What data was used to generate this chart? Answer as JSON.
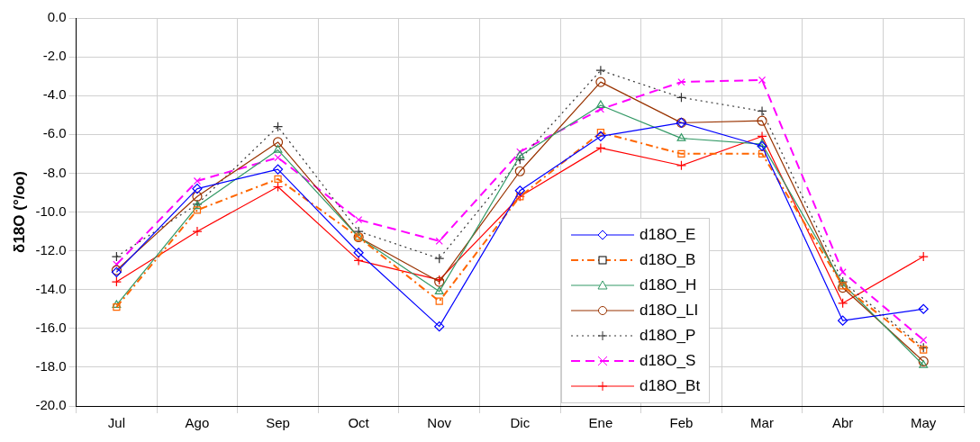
{
  "chart_data": {
    "type": "line",
    "ylabel": "δ18O (°/oo)",
    "categories": [
      "Jul",
      "Ago",
      "Sep",
      "Oct",
      "Nov",
      "Dic",
      "Ene",
      "Feb",
      "Mar",
      "Abr",
      "May"
    ],
    "ylim": [
      -20,
      0
    ],
    "yticks": [
      {
        "value": -20,
        "label": "-20.0"
      },
      {
        "value": -18,
        "label": "-18.0"
      },
      {
        "value": -16,
        "label": "-16.0"
      },
      {
        "value": -14,
        "label": "-14.0"
      },
      {
        "value": -12,
        "label": "-12.0"
      },
      {
        "value": -10,
        "label": "-10.0"
      },
      {
        "value": -8,
        "label": "-8.0"
      },
      {
        "value": -6,
        "label": "-6.0"
      },
      {
        "value": -4,
        "label": "-4.0"
      },
      {
        "value": -2,
        "label": "-2.0"
      },
      {
        "value": 0,
        "label": "0.0"
      }
    ],
    "grid": true,
    "legend": "bottom right",
    "series": [
      {
        "name": "d18O_E",
        "color": "#0000ff",
        "marker": "diamond",
        "line_style": "solid",
        "values": [
          -13.1,
          -8.8,
          -7.8,
          -12.1,
          -15.9,
          -8.9,
          -6.1,
          -5.4,
          -6.6,
          -15.6,
          -15.0
        ]
      },
      {
        "name": "d18O_B",
        "color": "#ff6600",
        "marker": "square",
        "line_style": "dashdot",
        "values": [
          -14.9,
          -9.9,
          -8.3,
          -11.3,
          -14.6,
          -9.2,
          -5.9,
          -7.0,
          -7.0,
          -13.8,
          -17.1
        ]
      },
      {
        "name": "d18O_H",
        "color": "#339966",
        "marker": "triangle",
        "line_style": "solid",
        "values": [
          -14.8,
          -9.7,
          -6.8,
          -11.3,
          -14.1,
          -7.1,
          -4.5,
          -6.2,
          -6.5,
          -13.7,
          -17.9
        ]
      },
      {
        "name": "d18O_LI",
        "color": "#993300",
        "marker": "circle",
        "line_style": "solid",
        "values": [
          -13.0,
          -9.2,
          -6.4,
          -11.3,
          -13.6,
          -7.9,
          -3.3,
          -5.4,
          -5.3,
          -13.9,
          -17.7
        ]
      },
      {
        "name": "d18O_P",
        "color": "#333333",
        "marker": "cross",
        "line_style": "dotted",
        "values": [
          -12.3,
          -9.6,
          -5.6,
          -11.0,
          -12.4,
          -7.3,
          -2.7,
          -4.1,
          -4.8,
          -13.6,
          -17.0
        ]
      },
      {
        "name": "d18O_S",
        "color": "#ff00ff",
        "marker": "x",
        "line_style": "dashed",
        "values": [
          -12.7,
          -8.4,
          -7.2,
          -10.4,
          -11.5,
          -6.9,
          -4.7,
          -3.3,
          -3.2,
          -13.1,
          -16.6
        ]
      },
      {
        "name": "d18O_Bt",
        "color": "#ff0000",
        "marker": "cross",
        "line_style": "solid",
        "values": [
          -13.6,
          -11.0,
          -8.7,
          -12.5,
          -13.5,
          -9.2,
          -6.7,
          -7.6,
          -6.1,
          -14.7,
          -12.3
        ]
      }
    ]
  }
}
